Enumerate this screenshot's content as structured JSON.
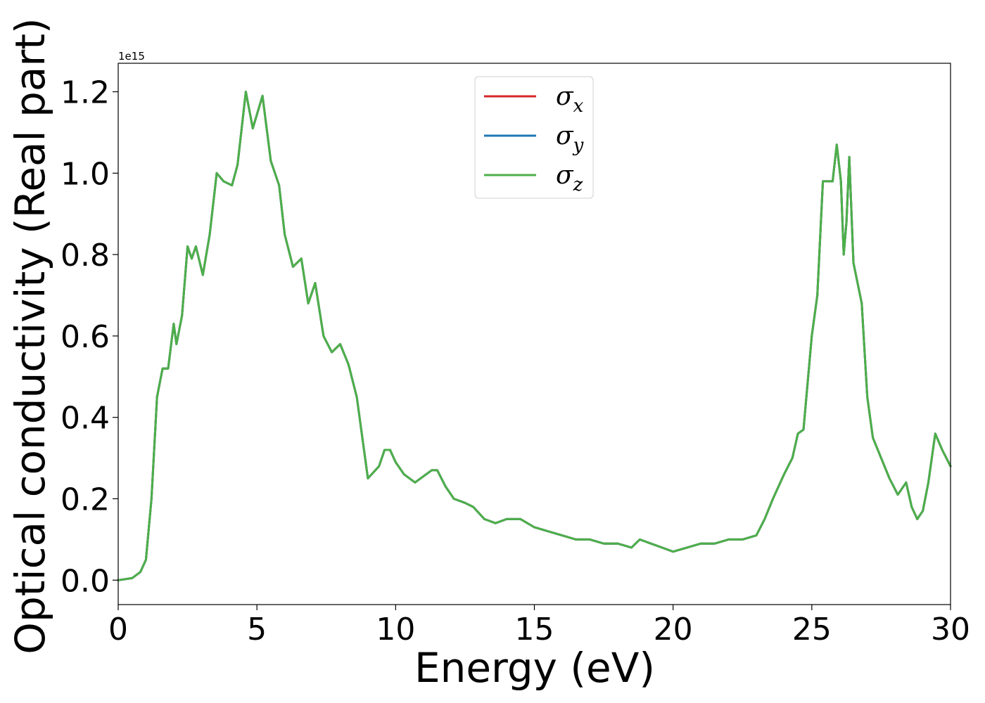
{
  "chart_data": {
    "type": "line",
    "xlabel": "Energy (eV)",
    "ylabel": "Optical conductivity (Real part)",
    "offset_label": "1e15",
    "xlim": [
      0,
      30
    ],
    "ylim": [
      -0.06,
      1.27
    ],
    "xticks": [
      0,
      5,
      10,
      15,
      20,
      25,
      30
    ],
    "xtick_labels": [
      "0",
      "5",
      "10",
      "15",
      "20",
      "25",
      "30"
    ],
    "yticks": [
      0.0,
      0.2,
      0.4,
      0.6,
      0.8,
      1.0,
      1.2
    ],
    "ytick_labels": [
      "0.0",
      "0.2",
      "0.4",
      "0.6",
      "0.8",
      "1.0",
      "1.2"
    ],
    "grid": false,
    "legend_position": "top-center",
    "x": [
      0,
      0.5,
      0.8,
      1.0,
      1.2,
      1.4,
      1.6,
      1.8,
      2.0,
      2.1,
      2.3,
      2.5,
      2.65,
      2.8,
      3.05,
      3.3,
      3.55,
      3.8,
      4.1,
      4.3,
      4.6,
      4.85,
      5.2,
      5.5,
      5.8,
      6.0,
      6.3,
      6.6,
      6.85,
      7.1,
      7.4,
      7.7,
      8.0,
      8.3,
      8.6,
      9.0,
      9.4,
      9.6,
      9.8,
      10.0,
      10.3,
      10.7,
      11.1,
      11.3,
      11.5,
      11.8,
      12.1,
      12.5,
      12.8,
      13.2,
      13.6,
      14.0,
      14.5,
      15.0,
      15.5,
      16.0,
      16.5,
      17.0,
      17.5,
      18.0,
      18.5,
      18.8,
      19.2,
      19.6,
      20.0,
      20.5,
      21.0,
      21.5,
      22.0,
      22.5,
      23.0,
      23.3,
      23.6,
      24.0,
      24.3,
      24.5,
      24.7,
      25.0,
      25.2,
      25.4,
      25.6,
      25.75,
      25.9,
      26.05,
      26.15,
      26.25,
      26.35,
      26.5,
      26.8,
      27.0,
      27.2,
      27.5,
      27.8,
      28.1,
      28.4,
      28.6,
      28.8,
      29.0,
      29.2,
      29.45,
      29.7,
      29.85,
      30.0
    ],
    "series": [
      {
        "name": "σ_x",
        "color": "#d62728",
        "values": [
          0.0,
          0.005,
          0.02,
          0.05,
          0.2,
          0.45,
          0.52,
          0.52,
          0.63,
          0.58,
          0.65,
          0.82,
          0.79,
          0.82,
          0.75,
          0.85,
          1.0,
          0.98,
          0.97,
          1.02,
          1.2,
          1.11,
          1.19,
          1.03,
          0.97,
          0.85,
          0.77,
          0.79,
          0.68,
          0.73,
          0.6,
          0.56,
          0.58,
          0.53,
          0.45,
          0.25,
          0.28,
          0.32,
          0.32,
          0.29,
          0.26,
          0.24,
          0.26,
          0.27,
          0.27,
          0.23,
          0.2,
          0.19,
          0.18,
          0.15,
          0.14,
          0.15,
          0.15,
          0.13,
          0.12,
          0.11,
          0.1,
          0.1,
          0.09,
          0.09,
          0.08,
          0.1,
          0.09,
          0.08,
          0.07,
          0.08,
          0.09,
          0.09,
          0.1,
          0.1,
          0.11,
          0.15,
          0.2,
          0.26,
          0.3,
          0.36,
          0.37,
          0.6,
          0.7,
          0.98,
          0.98,
          0.98,
          1.07,
          0.98,
          0.8,
          0.88,
          1.04,
          0.78,
          0.68,
          0.45,
          0.35,
          0.3,
          0.25,
          0.21,
          0.24,
          0.18,
          0.15,
          0.17,
          0.24,
          0.36,
          0.32,
          0.3,
          0.28
        ]
      },
      {
        "name": "σ_y",
        "color": "#1f77b4",
        "values": [
          0.0,
          0.005,
          0.02,
          0.05,
          0.2,
          0.45,
          0.52,
          0.52,
          0.63,
          0.58,
          0.65,
          0.82,
          0.79,
          0.82,
          0.75,
          0.85,
          1.0,
          0.98,
          0.97,
          1.02,
          1.2,
          1.11,
          1.19,
          1.03,
          0.97,
          0.85,
          0.77,
          0.79,
          0.68,
          0.73,
          0.6,
          0.56,
          0.58,
          0.53,
          0.45,
          0.25,
          0.28,
          0.32,
          0.32,
          0.29,
          0.26,
          0.24,
          0.26,
          0.27,
          0.27,
          0.23,
          0.2,
          0.19,
          0.18,
          0.15,
          0.14,
          0.15,
          0.15,
          0.13,
          0.12,
          0.11,
          0.1,
          0.1,
          0.09,
          0.09,
          0.08,
          0.1,
          0.09,
          0.08,
          0.07,
          0.08,
          0.09,
          0.09,
          0.1,
          0.1,
          0.11,
          0.15,
          0.2,
          0.26,
          0.3,
          0.36,
          0.37,
          0.6,
          0.7,
          0.98,
          0.98,
          0.98,
          1.07,
          0.98,
          0.8,
          0.88,
          1.04,
          0.78,
          0.68,
          0.45,
          0.35,
          0.3,
          0.25,
          0.21,
          0.24,
          0.18,
          0.15,
          0.17,
          0.24,
          0.36,
          0.32,
          0.3,
          0.28
        ]
      },
      {
        "name": "σ_z",
        "color": "#4daf4a",
        "values": [
          0.0,
          0.005,
          0.02,
          0.05,
          0.2,
          0.45,
          0.52,
          0.52,
          0.63,
          0.58,
          0.65,
          0.82,
          0.79,
          0.82,
          0.75,
          0.85,
          1.0,
          0.98,
          0.97,
          1.02,
          1.2,
          1.11,
          1.19,
          1.03,
          0.97,
          0.85,
          0.77,
          0.79,
          0.68,
          0.73,
          0.6,
          0.56,
          0.58,
          0.53,
          0.45,
          0.25,
          0.28,
          0.32,
          0.32,
          0.29,
          0.26,
          0.24,
          0.26,
          0.27,
          0.27,
          0.23,
          0.2,
          0.19,
          0.18,
          0.15,
          0.14,
          0.15,
          0.15,
          0.13,
          0.12,
          0.11,
          0.1,
          0.1,
          0.09,
          0.09,
          0.08,
          0.1,
          0.09,
          0.08,
          0.07,
          0.08,
          0.09,
          0.09,
          0.1,
          0.1,
          0.11,
          0.15,
          0.2,
          0.26,
          0.3,
          0.36,
          0.37,
          0.6,
          0.7,
          0.98,
          0.98,
          0.98,
          1.07,
          0.98,
          0.8,
          0.88,
          1.04,
          0.78,
          0.68,
          0.45,
          0.35,
          0.3,
          0.25,
          0.21,
          0.24,
          0.18,
          0.15,
          0.17,
          0.24,
          0.36,
          0.32,
          0.3,
          0.28
        ]
      }
    ],
    "legend": [
      {
        "symbol": "σ",
        "sub": "x",
        "color": "#d62728"
      },
      {
        "symbol": "σ",
        "sub": "y",
        "color": "#1f77b4"
      },
      {
        "symbol": "σ",
        "sub": "z",
        "color": "#4daf4a"
      }
    ]
  }
}
